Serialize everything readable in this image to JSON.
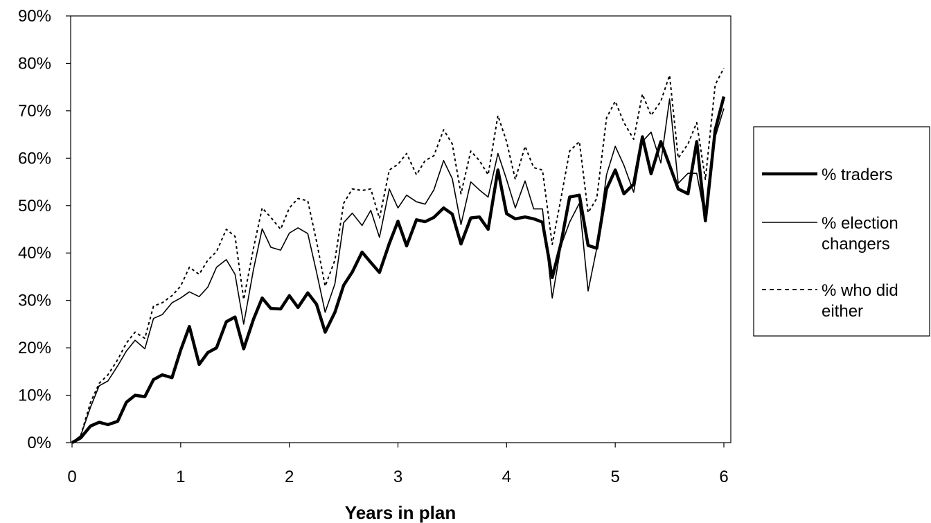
{
  "chart_data": {
    "type": "line",
    "title": "",
    "xlabel": "Years in plan",
    "ylabel": "",
    "xlim": [
      0,
      6.08
    ],
    "ylim": [
      0,
      90
    ],
    "x_ticks": [
      "0",
      "1",
      "2",
      "3",
      "4",
      "5",
      "6"
    ],
    "y_ticks": [
      "0%",
      "10%",
      "20%",
      "30%",
      "40%",
      "50%",
      "60%",
      "70%",
      "80%",
      "90%"
    ],
    "grid": false,
    "legend_position": "right",
    "x": [
      0.0,
      0.08,
      0.17,
      0.25,
      0.33,
      0.42,
      0.5,
      0.58,
      0.67,
      0.75,
      0.83,
      0.92,
      1.0,
      1.08,
      1.17,
      1.25,
      1.33,
      1.42,
      1.5,
      1.58,
      1.67,
      1.75,
      1.83,
      1.92,
      2.0,
      2.08,
      2.17,
      2.25,
      2.33,
      2.42,
      2.5,
      2.58,
      2.67,
      2.75,
      2.83,
      2.92,
      3.0,
      3.08,
      3.17,
      3.25,
      3.33,
      3.42,
      3.5,
      3.58,
      3.67,
      3.75,
      3.83,
      3.92,
      4.0,
      4.08,
      4.17,
      4.25,
      4.33,
      4.42,
      4.5,
      4.58,
      4.67,
      4.75,
      4.83,
      4.92,
      5.0,
      5.08,
      5.17,
      5.25,
      5.33,
      5.42,
      5.5,
      5.58,
      5.67,
      5.75,
      5.83,
      5.92,
      6.0
    ],
    "series": [
      {
        "name": "% traders",
        "style": "thick",
        "color": "#000000",
        "values": [
          0,
          1,
          3.5,
          4.3,
          3.8,
          4.5,
          8.5,
          10,
          9.7,
          13.3,
          14.3,
          13.7,
          19.5,
          24.5,
          16.5,
          19,
          20,
          25.5,
          26.5,
          19.8,
          26,
          30.5,
          28.3,
          28.2,
          31,
          28.5,
          31.6,
          29.2,
          23.3,
          27.5,
          33.2,
          36,
          40.2,
          38,
          35.9,
          42,
          46.7,
          41.5,
          47,
          46.6,
          47.5,
          49.5,
          48.2,
          41.9,
          47.4,
          47.6,
          45,
          57.5,
          48.3,
          47.2,
          47.6,
          47.2,
          46.5,
          34.8,
          42,
          51.8,
          52.2,
          41.6,
          41,
          53.5,
          57.5,
          52.5,
          54.5,
          64.5,
          56.7,
          63.5,
          58.5,
          53.5,
          52.5,
          63.5,
          46.8,
          66,
          73
        ]
      },
      {
        "name": "% election changers",
        "style": "thin",
        "color": "#000000",
        "values": [
          0,
          1.5,
          7.5,
          12,
          13,
          16.2,
          19.3,
          21.6,
          19.8,
          26.2,
          27,
          29.5,
          30.5,
          31.8,
          30.8,
          32.8,
          37,
          38.6,
          35.5,
          25,
          36.5,
          45.1,
          41.2,
          40.6,
          44.2,
          45.3,
          44.1,
          36,
          27.5,
          33.5,
          46.4,
          48.4,
          45.8,
          49,
          43.3,
          53.5,
          49.5,
          52.2,
          50.8,
          50.3,
          53.3,
          59.5,
          55.7,
          46,
          55,
          53.3,
          51.8,
          61,
          55.5,
          49.5,
          55.2,
          49.3,
          49.3,
          30.5,
          41.5,
          46.5,
          50.5,
          32,
          41,
          56.5,
          62.5,
          58.5,
          52.8,
          63.5,
          65.5,
          59,
          72.5,
          54.7,
          56.8,
          56.8,
          47,
          64.5,
          70.5
        ]
      },
      {
        "name": "% who did either",
        "style": "dotted",
        "color": "#000000",
        "values": [
          0,
          1.5,
          8.5,
          12.5,
          14.3,
          17.5,
          21,
          23.3,
          22,
          28.8,
          29.5,
          31,
          33,
          37,
          35.5,
          38.5,
          40.3,
          45,
          43.5,
          30.2,
          41,
          49.5,
          47.5,
          45,
          49.5,
          51.5,
          51,
          42.5,
          33,
          38.5,
          50.5,
          53.5,
          53.2,
          53.5,
          47.3,
          57.5,
          58.7,
          61,
          56.5,
          59.5,
          60.5,
          66,
          63,
          52.5,
          61.5,
          59.5,
          56.5,
          69,
          63.5,
          55.5,
          62.5,
          58,
          57.5,
          41.8,
          51.5,
          61.5,
          63.5,
          48.5,
          51.5,
          68.5,
          72,
          67.5,
          64,
          73.5,
          69,
          72,
          77.5,
          60,
          63,
          67.5,
          55.5,
          75.5,
          79
        ]
      }
    ]
  }
}
